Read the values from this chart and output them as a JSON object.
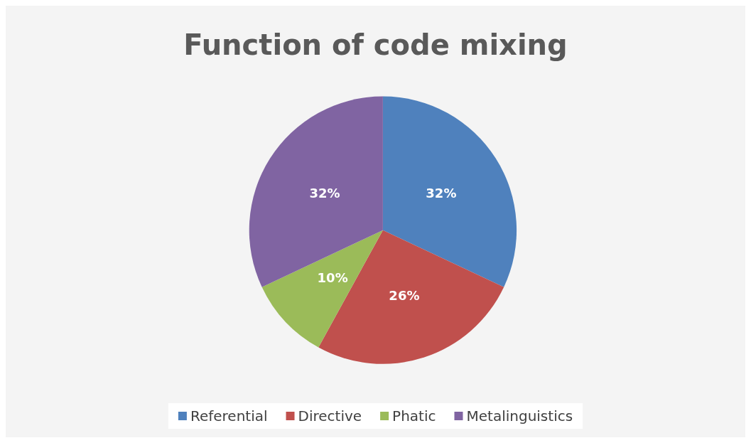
{
  "chart_data": {
    "type": "pie",
    "title": "Function of code mixing",
    "categories": [
      "Referential",
      "Directive",
      "Phatic",
      "Metalinguistics"
    ],
    "values": [
      32,
      26,
      10,
      32
    ],
    "colors": [
      "#4f81bd",
      "#c0504d",
      "#9bbb59",
      "#8064a2"
    ],
    "value_labels": [
      "32%",
      "26%",
      "10%",
      "32%"
    ],
    "legend": "bottom"
  }
}
